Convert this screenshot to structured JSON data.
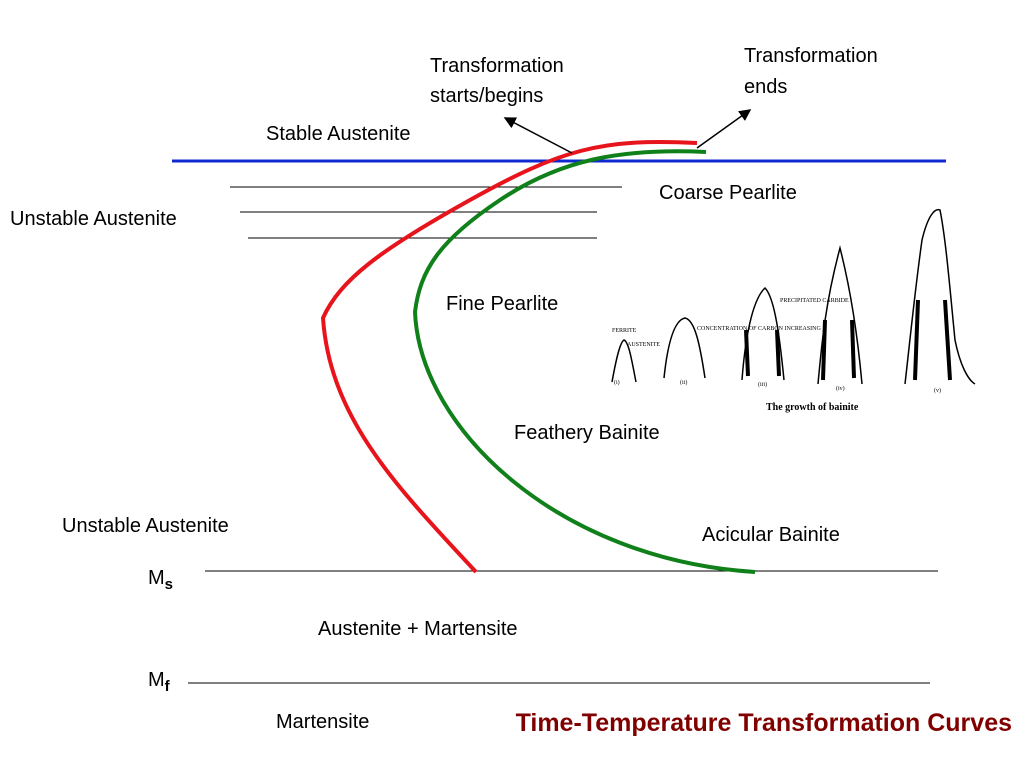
{
  "title": "Time-Temperature Transformation Curves",
  "annotations": {
    "start": [
      "Transformation",
      "starts/begins"
    ],
    "end": [
      "Transformation",
      "ends"
    ]
  },
  "regions": {
    "stable_austenite": "Stable Austenite",
    "unstable_austenite_top": "Unstable Austenite",
    "coarse_pearlite": "Coarse Pearlite",
    "fine_pearlite": "Fine Pearlite",
    "feathery_bainite": "Feathery Bainite",
    "unstable_austenite_bottom": "Unstable Austenite",
    "acicular_bainite": "Acicular Bainite",
    "austenite_martensite": "Austenite + Martensite",
    "martensite": "Martensite"
  },
  "levels": {
    "ms": {
      "symbol": "M",
      "sub": "s"
    },
    "mf": {
      "symbol": "M",
      "sub": "f"
    }
  },
  "inset": {
    "labels": [
      "FERRITE",
      "AUSTENITE",
      "CONCENTRATION OF CARBON INCREASING",
      "PRECIPITATED CARBIDE"
    ],
    "stages": [
      "(i)",
      "(ii)",
      "(iii)",
      "(iv)",
      "(v)"
    ],
    "caption": "The growth of bainite"
  }
}
